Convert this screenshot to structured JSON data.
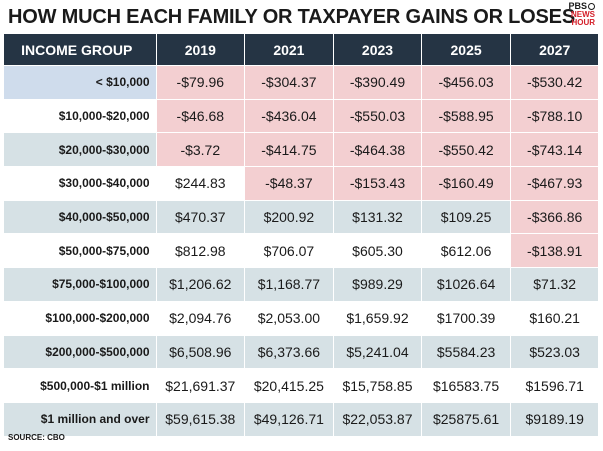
{
  "title": "HOW MUCH EACH FAMILY OR TAXPAYER GAINS OR LOSES",
  "logo": {
    "line1": "PBS",
    "line2": "NEWS",
    "line3": "HOUR"
  },
  "source": "SOURCE: CBO",
  "colors": {
    "header_bg": "#253444",
    "negative_bg": "#f3cfd1",
    "shade_bg": "#d6e1e5",
    "logo_red": "#d4202a"
  },
  "chart_data": {
    "type": "table",
    "title": "HOW MUCH EACH FAMILY OR TAXPAYER GAINS OR LOSES",
    "columns": [
      "INCOME GROUP",
      "2019",
      "2021",
      "2023",
      "2025",
      "2027"
    ],
    "rows": [
      [
        "< $10,000",
        "-$79.96",
        "-$304.37",
        "-$390.49",
        "-$456.03",
        "-$530.42"
      ],
      [
        "$10,000-$20,000",
        "-$46.68",
        "-$436.04",
        "-$550.03",
        "-$588.95",
        "-$788.10"
      ],
      [
        "$20,000-$30,000",
        "-$3.72",
        "-$414.75",
        "-$464.38",
        "-$550.42",
        "-$743.14"
      ],
      [
        "$30,000-$40,000",
        "$244.83",
        "-$48.37",
        "-$153.43",
        "-$160.49",
        "-$467.93"
      ],
      [
        "$40,000-$50,000",
        "$470.37",
        "$200.92",
        "$131.32",
        "$109.25",
        "-$366.86"
      ],
      [
        "$50,000-$75,000",
        "$812.98",
        "$706.07",
        "$605.30",
        "$612.06",
        "-$138.91"
      ],
      [
        "$75,000-$100,000",
        "$1,206.62",
        "$1,168.77",
        "$989.29",
        "$1026.64",
        "$71.32"
      ],
      [
        "$100,000-$200,000",
        "$2,094.76",
        "$2,053.00",
        "$1,659.92",
        "$1700.39",
        "$160.21"
      ],
      [
        "$200,000-$500,000",
        "$6,508.96",
        "$6,373.66",
        "$5,241.04",
        "$5584.23",
        "$523.03"
      ],
      [
        "$500,000-$1 million",
        "$21,691.37",
        "$20,415.25",
        "$15,758.85",
        "$16583.75",
        "$1596.71"
      ],
      [
        "$1 million and over",
        "$59,615.38",
        "$49,126.71",
        "$22,053.87",
        "$25875.61",
        "$9189.19"
      ]
    ]
  }
}
